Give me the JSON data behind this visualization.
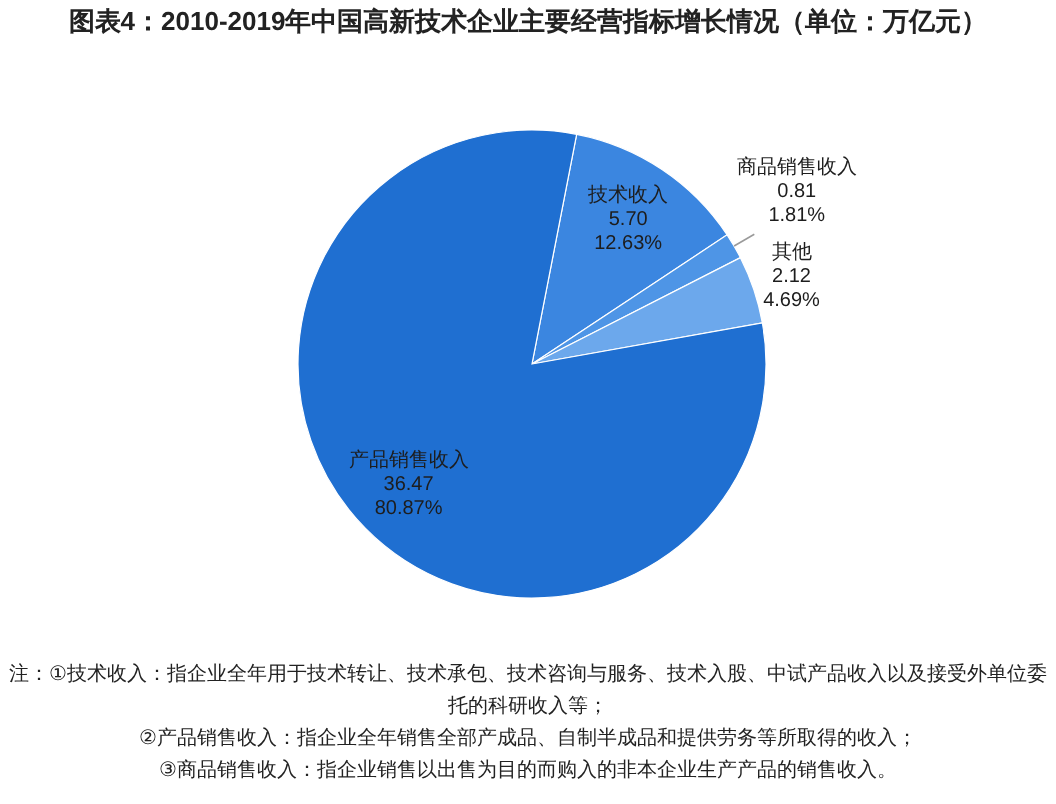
{
  "chart_data": {
    "type": "pie",
    "title": "图表4：2010-2019年中国高新技术企业主要经营指标增长情况（单位：万亿元）",
    "categories": [
      "技术收入",
      "商品销售收入",
      "其他",
      "产品销售收入"
    ],
    "values": [
      5.7,
      0.81,
      2.12,
      36.47
    ],
    "colors": [
      "#3b86e0",
      "#4e95e6",
      "#6ca8ec",
      "#1f6fd1"
    ],
    "value_labels": [
      "5.70\n12.63%",
      "0.81\n1.81%",
      "2.12\n4.69%",
      "36.47\n80.87%"
    ],
    "annotations": [
      "注：①技术收入：指企业全年用于技术转让、技术承包、技术咨询与服务、技术入股、中试产品收入以及接受外单位委托的科研收入等；",
      "②产品销售收入：指企业全年销售全部产成品、自制半成品和提供劳务等所取得的收入；",
      "③商品销售收入：指企业销售以出售为目的而购入的非本企业生产产品的销售收入。"
    ]
  }
}
